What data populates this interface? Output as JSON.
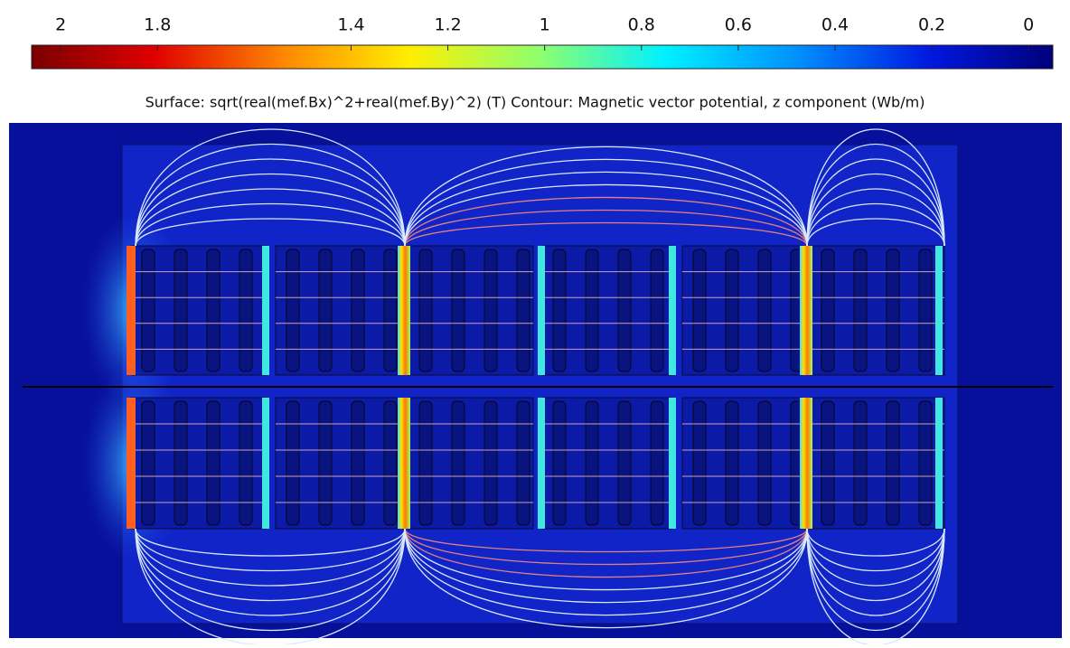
{
  "chart_data": {
    "type": "surface",
    "title": "Surface: sqrt(real(mef.Bx)^2+real(mef.By)^2) (T)  Contour: Magnetic vector potential, z component (Wb/m)",
    "xlim": [
      2.06,
      -0.05
    ],
    "xticks": [
      2,
      1.8,
      1.4,
      1.2,
      1,
      0.8,
      0.6,
      0.4,
      0.2,
      0
    ]
  }
}
